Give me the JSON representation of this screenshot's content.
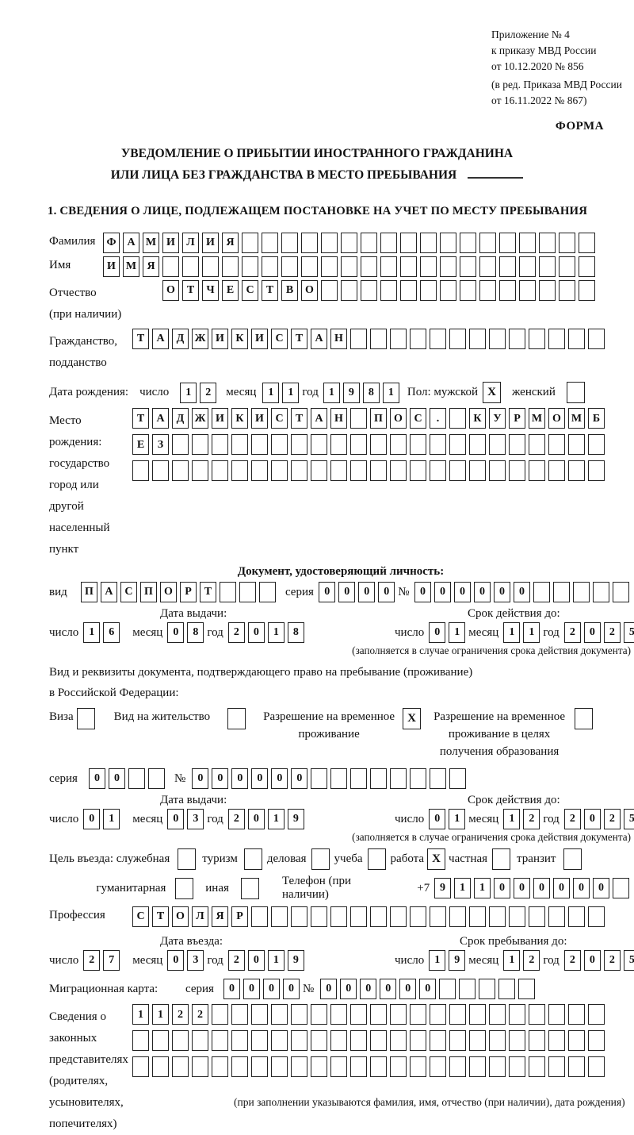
{
  "header": {
    "line1": "Приложение № 4",
    "line2": "к приказу МВД России",
    "line3": "от 10.12.2020 № 856",
    "line4": "(в ред. Приказа МВД России",
    "line5": "от 16.11.2022 № 867)",
    "form_label": "ФОРМА"
  },
  "title": {
    "line1": "УВЕДОМЛЕНИЕ О ПРИБЫТИИ ИНОСТРАННОГО ГРАЖДАНИНА",
    "line2": "ИЛИ ЛИЦА БЕЗ ГРАЖДАНСТВА В МЕСТО ПРЕБЫВАНИЯ"
  },
  "section1": {
    "heading": "1. СВЕДЕНИЯ О ЛИЦЕ, ПОДЛЕЖАЩЕМ ПОСТАНОВКЕ НА УЧЕТ ПО МЕСТУ ПРЕБЫВАНИЯ",
    "surname": {
      "label": "Фамилия",
      "cells": {
        "text": "ФАМИЛИЯ",
        "total": 25
      }
    },
    "name": {
      "label": "Имя",
      "cells": {
        "text": "ИМЯ",
        "total": 25
      }
    },
    "patronymic": {
      "label1": "Отчество",
      "label2": "(при наличии)",
      "cells": {
        "text": "ОТЧЕСТВО",
        "total": 22
      }
    },
    "citizenship": {
      "label1": "Гражданство,",
      "label2": "подданство",
      "cells": {
        "text": "ТАДЖИКИСТАН",
        "total": 24
      }
    },
    "birth_date": {
      "label": "Дата рождения:",
      "day_label": "число",
      "day": {
        "text": "12",
        "total": 2
      },
      "month_label": "месяц",
      "month": {
        "text": "11",
        "total": 2
      },
      "year_label": "год",
      "year": {
        "text": "1981",
        "total": 4
      }
    },
    "gender": {
      "label_male": "Пол: мужской",
      "male": "X",
      "label_female": "женский",
      "female": ""
    },
    "birth_place": {
      "label1": "Место рождения:",
      "label2": "государство",
      "label3": "город или другой",
      "label4": "населенный пункт",
      "row1": {
        "text": "ТАДЖИКИСТАН ПОС. КУРМОМБ",
        "total": 24
      },
      "row2": {
        "text": "ЕЗ",
        "total": 24
      },
      "row3": {
        "text": "",
        "total": 24
      }
    },
    "identity_doc": {
      "heading": "Документ, удостоверяющий личность:",
      "type_label": "вид",
      "type": {
        "text": "ПАСПОРТ",
        "total": 10
      },
      "series_label": "серия",
      "series": {
        "text": "0000",
        "total": 4
      },
      "number_label": "№",
      "number": {
        "text": "000000",
        "total": 11
      },
      "issue_label": "Дата выдачи:",
      "issue_day_label": "число",
      "issue_day": {
        "text": "16",
        "total": 2
      },
      "issue_month_label": "месяц",
      "issue_month": {
        "text": "08",
        "total": 2
      },
      "issue_year_label": "год",
      "issue_year": {
        "text": "2018",
        "total": 4
      },
      "valid_label": "Срок действия до:",
      "valid_day_label": "число",
      "valid_day": {
        "text": "01",
        "total": 2
      },
      "valid_month_label": "месяц",
      "valid_month": {
        "text": "11",
        "total": 2
      },
      "valid_year_label": "год",
      "valid_year": {
        "text": "2025",
        "total": 4
      },
      "note": "(заполняется в случае ограничения срока действия документа)"
    },
    "residence_doc": {
      "intro1": "Вид и реквизиты документа, подтверждающего право на пребывание (проживание)",
      "intro2": "в Российской Федерации:",
      "visa_label": "Виза",
      "visa": "",
      "residence_permit_label": "Вид на жительство",
      "residence_permit": "",
      "temp_permit_label1": "Разрешение на временное",
      "temp_permit_label2": "проживание",
      "temp_permit": "X",
      "edu_permit_label1": "Разрешение на временное",
      "edu_permit_label2": "проживание в целях",
      "edu_permit_label3": "получения образования",
      "edu_permit": "",
      "series_label": "серия",
      "series": {
        "text": "00",
        "total": 4
      },
      "number_label": "№",
      "number": {
        "text": "000000",
        "total": 14
      },
      "issue_label": "Дата выдачи:",
      "issue_day_label": "число",
      "issue_day": {
        "text": "01",
        "total": 2
      },
      "issue_month_label": "месяц",
      "issue_month": {
        "text": "03",
        "total": 2
      },
      "issue_year_label": "год",
      "issue_year": {
        "text": "2019",
        "total": 4
      },
      "valid_label": "Срок действия до:",
      "valid_day_label": "число",
      "valid_day": {
        "text": "01",
        "total": 2
      },
      "valid_month_label": "месяц",
      "valid_month": {
        "text": "12",
        "total": 2
      },
      "valid_year_label": "год",
      "valid_year": {
        "text": "2025",
        "total": 4
      },
      "note": "(заполняется в случае ограничения срока действия документа)"
    },
    "entry_purpose": {
      "label": "Цель въезда: служебная",
      "tourism_label": "туризм",
      "tourism": "",
      "official": "",
      "business_label": "деловая",
      "business": "",
      "study_label": "учеба",
      "study": "",
      "work_label": "работа",
      "work": "X",
      "private_label": "частная",
      "private": "",
      "transit_label": "транзит",
      "transit": "",
      "humanitarian_label": "гуманитарная",
      "humanitarian": "",
      "other_label": "иная",
      "other": ""
    },
    "phone": {
      "label": "Телефон (при наличии)",
      "prefix": "+7",
      "cells": {
        "text": "911000000",
        "total": 10
      }
    },
    "profession": {
      "label": "Профессия",
      "cells": {
        "text": "СТОЛЯР",
        "total": 24
      }
    },
    "entry_date": {
      "label": "Дата въезда:",
      "day_label": "число",
      "day": {
        "text": "27",
        "total": 2
      },
      "month_label": "месяц",
      "month": {
        "text": "03",
        "total": 2
      },
      "year_label": "год",
      "year": {
        "text": "2019",
        "total": 4
      }
    },
    "stay_until": {
      "label": "Срок пребывания до:",
      "day_label": "число",
      "day": {
        "text": "19",
        "total": 2
      },
      "month_label": "месяц",
      "month": {
        "text": "12",
        "total": 2
      },
      "year_label": "год",
      "year": {
        "text": "2025",
        "total": 4
      }
    },
    "migration_card": {
      "label": "Миграционная карта:",
      "series_label": "серия",
      "series": {
        "text": "0000",
        "total": 4
      },
      "number_label": "№",
      "number": {
        "text": "000000",
        "total": 11
      }
    },
    "representatives": {
      "label1": "Сведения о",
      "label2": "законных",
      "label3": "представителях",
      "label4": "(родителях,",
      "label5": "усыновителях,",
      "label6": "попечителях)",
      "row1": {
        "text": "1122",
        "total": 24
      },
      "row2": {
        "text": "",
        "total": 24
      },
      "row3": {
        "text": "",
        "total": 24
      },
      "note": "(при заполнении указываются фамилия, имя, отчество (при наличии), дата рождения)"
    }
  }
}
